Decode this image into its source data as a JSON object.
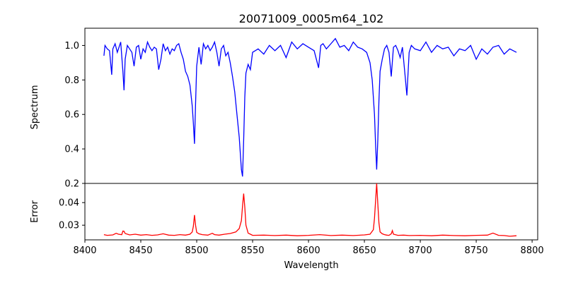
{
  "chart_data": [
    {
      "type": "line",
      "title": "20071009_0005m64_102",
      "xlabel": "",
      "ylabel": "Spectrum",
      "xlim": [
        8400,
        8805
      ],
      "ylim": [
        0.2,
        1.1
      ],
      "yticks": [
        0.2,
        0.4,
        0.6,
        0.8,
        1.0
      ],
      "grid": false,
      "series": [
        {
          "color": "#0000ff",
          "x": [
            8417,
            8418,
            8420,
            8422,
            8424,
            8425,
            8427,
            8429,
            8430,
            8432,
            8434,
            8435,
            8436,
            8438,
            8440,
            8442,
            8444,
            8446,
            8448,
            8450,
            8452,
            8454,
            8456,
            8458,
            8460,
            8462,
            8464,
            8466,
            8468,
            8470,
            8472,
            8474,
            8476,
            8478,
            8480,
            8482,
            8484,
            8486,
            8488,
            8490,
            8492,
            8494,
            8496,
            8497,
            8498,
            8499,
            8500,
            8502,
            8504,
            8506,
            8508,
            8510,
            8512,
            8514,
            8516,
            8518,
            8520,
            8522,
            8524,
            8526,
            8528,
            8530,
            8532,
            8534,
            8536,
            8538,
            8540,
            8541,
            8542,
            8543,
            8544,
            8546,
            8548,
            8550,
            8555,
            8560,
            8565,
            8570,
            8575,
            8580,
            8585,
            8590,
            8595,
            8600,
            8605,
            8609,
            8611,
            8613,
            8616,
            8620,
            8624,
            8628,
            8632,
            8636,
            8640,
            8644,
            8648,
            8652,
            8655,
            8657,
            8659,
            8660,
            8661,
            8662,
            8663,
            8664,
            8666,
            8668,
            8670,
            8672,
            8674,
            8676,
            8678,
            8680,
            8682,
            8684,
            8686,
            8688,
            8690,
            8692,
            8695,
            8700,
            8705,
            8710,
            8715,
            8720,
            8725,
            8730,
            8735,
            8740,
            8745,
            8750,
            8755,
            8760,
            8765,
            8770,
            8775,
            8780,
            8786
          ],
          "y": [
            0.94,
            1.0,
            0.98,
            0.97,
            0.83,
            0.98,
            1.01,
            0.96,
            0.98,
            1.02,
            0.85,
            0.74,
            0.92,
            1.0,
            0.98,
            0.96,
            0.88,
            0.99,
            1.0,
            0.92,
            0.98,
            0.96,
            1.02,
            0.99,
            0.97,
            0.99,
            0.98,
            0.86,
            0.92,
            1.01,
            0.97,
            0.99,
            0.95,
            0.98,
            0.97,
            1.0,
            1.01,
            0.96,
            0.92,
            0.85,
            0.82,
            0.77,
            0.65,
            0.55,
            0.43,
            0.66,
            0.88,
            0.99,
            0.89,
            1.01,
            0.98,
            1.0,
            0.97,
            0.99,
            1.02,
            0.96,
            0.88,
            0.98,
            1.0,
            0.94,
            0.96,
            0.9,
            0.82,
            0.73,
            0.6,
            0.47,
            0.28,
            0.24,
            0.45,
            0.7,
            0.84,
            0.89,
            0.86,
            0.96,
            0.98,
            0.95,
            1.0,
            0.97,
            1.0,
            0.93,
            1.02,
            0.98,
            1.01,
            0.99,
            0.97,
            0.87,
            1.0,
            1.01,
            0.98,
            1.01,
            1.04,
            0.99,
            1.0,
            0.97,
            1.02,
            0.99,
            0.98,
            0.96,
            0.9,
            0.8,
            0.6,
            0.42,
            0.28,
            0.45,
            0.68,
            0.85,
            0.92,
            0.98,
            1.0,
            0.96,
            0.82,
            0.99,
            1.0,
            0.97,
            0.93,
            0.99,
            0.85,
            0.71,
            0.96,
            1.0,
            0.98,
            0.97,
            1.02,
            0.96,
            1.0,
            0.98,
            0.99,
            0.94,
            0.98,
            0.97,
            1.0,
            0.92,
            0.98,
            0.95,
            0.99,
            1.0,
            0.95,
            0.98,
            0.96
          ]
        }
      ]
    },
    {
      "type": "line",
      "title": "",
      "xlabel": "Wavelength",
      "ylabel": "Error",
      "xlim": [
        8400,
        8805
      ],
      "ylim": [
        0.0235,
        0.0485
      ],
      "xticks": [
        8400,
        8450,
        8500,
        8550,
        8600,
        8650,
        8700,
        8750,
        8800
      ],
      "yticks": [
        0.03,
        0.04
      ],
      "grid": false,
      "series": [
        {
          "color": "#ff0000",
          "x": [
            8417,
            8420,
            8425,
            8428,
            8430,
            8433,
            8434,
            8435,
            8436,
            8440,
            8445,
            8450,
            8455,
            8460,
            8465,
            8470,
            8475,
            8480,
            8485,
            8490,
            8494,
            8496,
            8497,
            8498,
            8499,
            8500,
            8502,
            8505,
            8510,
            8514,
            8516,
            8520,
            8525,
            8530,
            8535,
            8538,
            8540,
            8541,
            8542,
            8543,
            8544,
            8546,
            8548,
            8550,
            8560,
            8570,
            8580,
            8590,
            8600,
            8610,
            8620,
            8630,
            8640,
            8650,
            8655,
            8658,
            8659,
            8660,
            8661,
            8662,
            8663,
            8664,
            8666,
            8668,
            8670,
            8672,
            8674,
            8675,
            8676,
            8680,
            8685,
            8690,
            8700,
            8710,
            8720,
            8730,
            8740,
            8750,
            8760,
            8765,
            8770,
            8775,
            8780,
            8786
          ],
          "y": [
            0.0258,
            0.0255,
            0.0257,
            0.0264,
            0.026,
            0.0258,
            0.0274,
            0.0273,
            0.0263,
            0.0257,
            0.026,
            0.0256,
            0.0258,
            0.0255,
            0.0257,
            0.0262,
            0.0256,
            0.0255,
            0.0258,
            0.0256,
            0.026,
            0.027,
            0.0295,
            0.0345,
            0.03,
            0.0268,
            0.0262,
            0.0258,
            0.0256,
            0.0264,
            0.0258,
            0.0256,
            0.026,
            0.0263,
            0.027,
            0.0285,
            0.032,
            0.0385,
            0.044,
            0.038,
            0.03,
            0.0265,
            0.026,
            0.0255,
            0.0256,
            0.0254,
            0.0256,
            0.0253,
            0.0255,
            0.0258,
            0.0254,
            0.0256,
            0.0254,
            0.0257,
            0.026,
            0.028,
            0.033,
            0.041,
            0.0485,
            0.0395,
            0.031,
            0.027,
            0.0262,
            0.0258,
            0.0256,
            0.0255,
            0.0262,
            0.0276,
            0.026,
            0.0255,
            0.0256,
            0.0254,
            0.0255,
            0.0253,
            0.0256,
            0.0254,
            0.0253,
            0.0255,
            0.0256,
            0.0265,
            0.0255,
            0.0254,
            0.0251,
            0.0253
          ]
        }
      ]
    }
  ]
}
